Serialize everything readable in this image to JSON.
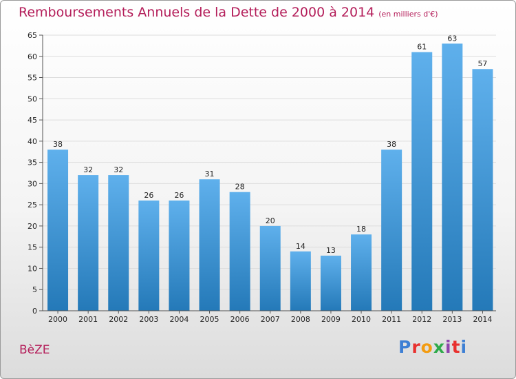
{
  "header": {
    "title": "Remboursements Annuels de la Dette de 2000 à 2014",
    "subtitle": "(en milliers d'€)"
  },
  "footer": {
    "commune": "BèZE",
    "logo_text": "Proxiti",
    "logo_colors": [
      "#3d7fd4",
      "#e8312f",
      "#f39c12",
      "#2eaa4a",
      "#8e44ad",
      "#e8312f",
      "#3d7fd4"
    ]
  },
  "colors": {
    "title": "#b41e5a",
    "bar_light": "#5fb0ec",
    "bar_dark": "#2479b8",
    "grid": "#dddddd",
    "axis": "#555555"
  },
  "chart_data": {
    "type": "bar",
    "categories": [
      "2000",
      "2001",
      "2002",
      "2003",
      "2004",
      "2005",
      "2006",
      "2007",
      "2008",
      "2009",
      "2010",
      "2011",
      "2012",
      "2013",
      "2014"
    ],
    "values": [
      38,
      32,
      32,
      26,
      26,
      31,
      28,
      20,
      14,
      13,
      18,
      38,
      61,
      63,
      57
    ],
    "title": "Remboursements Annuels de la Dette de 2000 à 2014",
    "xlabel": "",
    "ylabel": "",
    "ylim": [
      0,
      65
    ],
    "yticks": [
      0,
      5,
      10,
      15,
      20,
      25,
      30,
      35,
      40,
      45,
      50,
      55,
      60,
      65
    ],
    "grid": true,
    "data_labels": true
  }
}
